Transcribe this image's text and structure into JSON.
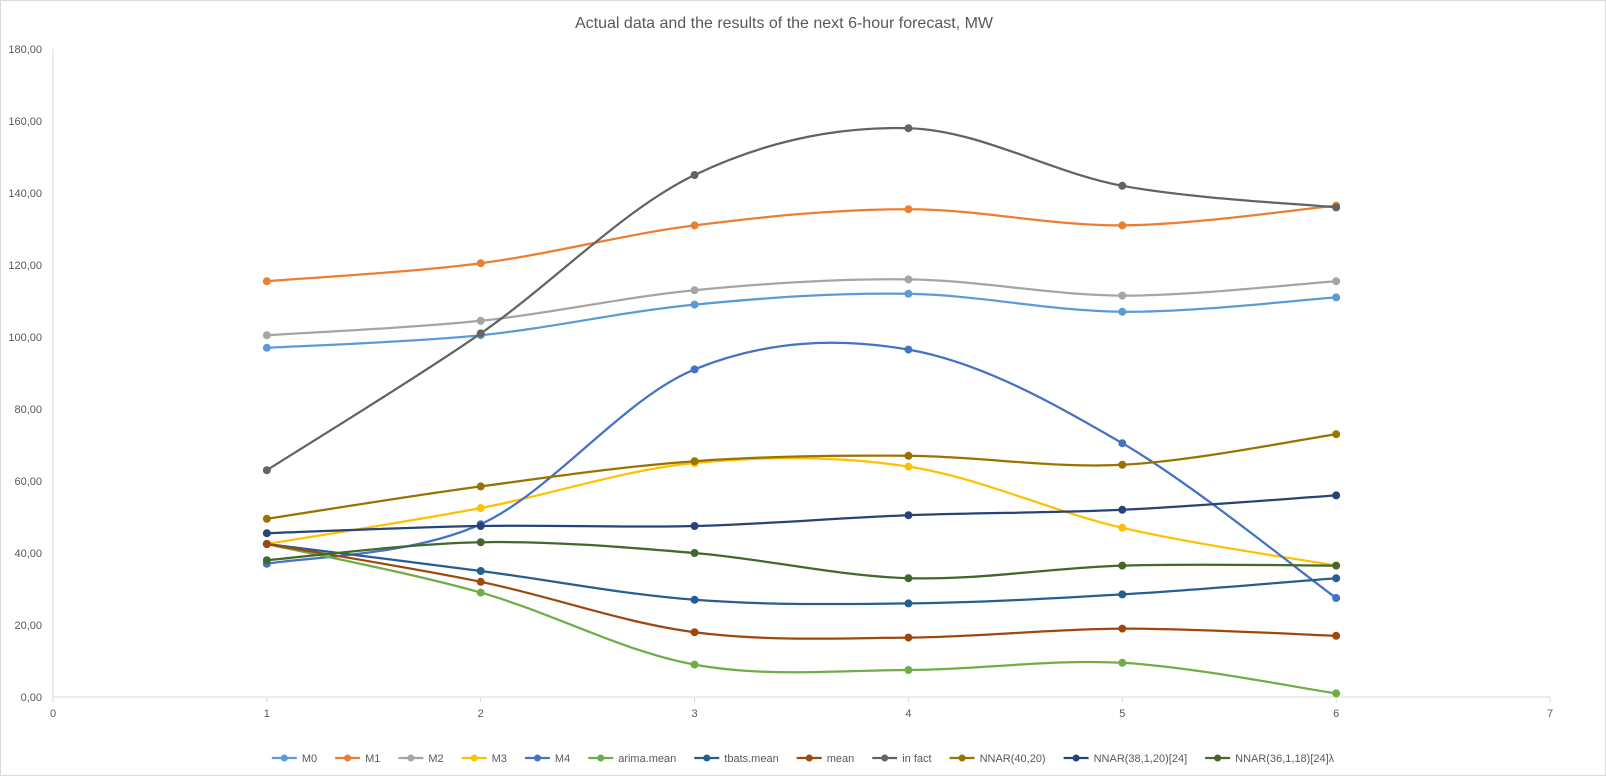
{
  "chart_data": {
    "type": "line",
    "title": "Actual data and the results of the next 6-hour forecast, MW",
    "xlabel": "",
    "ylabel": "",
    "xlim": [
      0,
      7
    ],
    "ylim": [
      0,
      180
    ],
    "x_ticks": [
      "0",
      "1",
      "2",
      "3",
      "4",
      "5",
      "6",
      "7"
    ],
    "y_ticks": [
      "0,00",
      "20,00",
      "40,00",
      "60,00",
      "80,00",
      "100,00",
      "120,00",
      "140,00",
      "160,00",
      "180,00"
    ],
    "grid": false,
    "smooth": true,
    "legend_position": "bottom",
    "x": [
      1,
      2,
      3,
      4,
      5,
      6
    ],
    "series": [
      {
        "name": "M0",
        "color": "#5b9bd5",
        "values": [
          97.0,
          100.5,
          109.0,
          112.0,
          107.0,
          111.0
        ]
      },
      {
        "name": "M1",
        "color": "#ed7d31",
        "values": [
          115.5,
          120.5,
          131.0,
          135.5,
          131.0,
          136.5
        ]
      },
      {
        "name": "M2",
        "color": "#a5a5a5",
        "values": [
          100.5,
          104.5,
          113.0,
          116.0,
          111.5,
          115.5
        ]
      },
      {
        "name": "M3",
        "color": "#ffc000",
        "values": [
          42.5,
          52.5,
          65.0,
          64.0,
          47.0,
          36.5
        ]
      },
      {
        "name": "M4",
        "color": "#4472c4",
        "values": [
          37.0,
          48.0,
          91.0,
          96.5,
          70.5,
          27.5
        ]
      },
      {
        "name": "arima.mean",
        "color": "#70ad47",
        "values": [
          42.5,
          29.0,
          9.0,
          7.5,
          9.5,
          1.0
        ]
      },
      {
        "name": "tbats.mean",
        "color": "#255e91",
        "values": [
          42.5,
          35.0,
          27.0,
          26.0,
          28.5,
          33.0
        ]
      },
      {
        "name": "mean",
        "color": "#9e480e",
        "values": [
          42.5,
          32.0,
          18.0,
          16.5,
          19.0,
          17.0
        ]
      },
      {
        "name": "in fact",
        "color": "#636363",
        "values": [
          63.0,
          101.0,
          145.0,
          158.0,
          142.0,
          136.0
        ]
      },
      {
        "name": "NNAR(40,20)",
        "color": "#997300",
        "values": [
          49.5,
          58.5,
          65.5,
          67.0,
          64.5,
          73.0
        ]
      },
      {
        "name": "NNAR(38,1,20)[24]",
        "color": "#264478",
        "values": [
          45.5,
          47.5,
          47.5,
          50.5,
          52.0,
          56.0
        ]
      },
      {
        "name": "NNAR(36,1,18)[24]λ",
        "color": "#43682b",
        "values": [
          38.0,
          43.0,
          40.0,
          33.0,
          36.5,
          36.5
        ]
      }
    ]
  }
}
